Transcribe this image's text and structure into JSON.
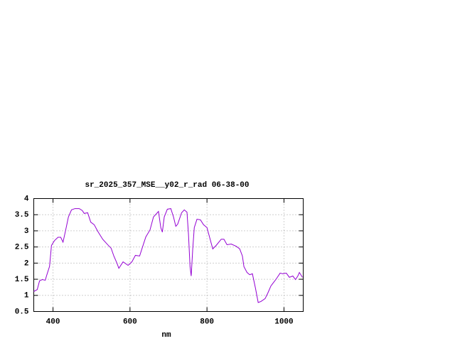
{
  "chart_data": {
    "type": "line",
    "title": "sr_2025_357_MSE__y02_r_rad 06-38-00",
    "xlabel": "nm",
    "color": "#9400d3",
    "x": [
      350,
      359,
      365,
      372,
      380,
      383,
      391,
      396,
      404,
      413,
      420,
      426,
      433,
      440,
      448,
      457,
      468,
      476,
      481,
      490,
      498,
      507,
      516,
      529,
      542,
      551,
      558,
      566,
      571,
      582,
      595,
      605,
      614,
      625,
      632,
      641,
      652,
      661,
      674,
      680,
      684,
      689,
      697,
      706,
      713,
      719,
      724,
      734,
      741,
      748,
      752,
      756,
      759,
      763,
      767,
      774,
      783,
      791,
      800,
      805,
      815,
      824,
      837,
      844,
      852,
      863,
      876,
      885,
      892,
      896,
      904,
      911,
      918,
      926,
      933,
      940,
      951,
      958,
      966,
      973,
      980,
      990,
      997,
      1006,
      1014,
      1023,
      1030,
      1036,
      1040,
      1048
    ],
    "values": [
      1.12,
      1.18,
      1.45,
      1.49,
      1.47,
      1.6,
      1.9,
      2.55,
      2.7,
      2.8,
      2.8,
      2.65,
      3.03,
      3.43,
      3.65,
      3.69,
      3.69,
      3.63,
      3.54,
      3.56,
      3.27,
      3.19,
      2.99,
      2.74,
      2.57,
      2.46,
      2.22,
      2.0,
      1.84,
      2.04,
      1.93,
      2.04,
      2.24,
      2.22,
      2.48,
      2.81,
      3.03,
      3.43,
      3.6,
      3.1,
      2.96,
      3.43,
      3.67,
      3.69,
      3.43,
      3.14,
      3.21,
      3.56,
      3.65,
      3.58,
      2.88,
      1.89,
      1.6,
      2.44,
      3.1,
      3.36,
      3.34,
      3.19,
      3.1,
      2.88,
      2.44,
      2.55,
      2.74,
      2.74,
      2.57,
      2.59,
      2.52,
      2.44,
      2.22,
      1.89,
      1.71,
      1.64,
      1.67,
      1.22,
      0.78,
      0.81,
      0.9,
      1.07,
      1.29,
      1.4,
      1.51,
      1.69,
      1.67,
      1.69,
      1.56,
      1.6,
      1.49,
      1.6,
      1.71,
      1.56
    ],
    "xlim": [
      350,
      1050
    ],
    "xticks": [
      400,
      600,
      800,
      1000
    ],
    "ylim": [
      0.5,
      4
    ],
    "yticks": [
      0.5,
      1,
      1.5,
      2,
      2.5,
      3,
      3.5,
      4
    ],
    "grid": true
  }
}
